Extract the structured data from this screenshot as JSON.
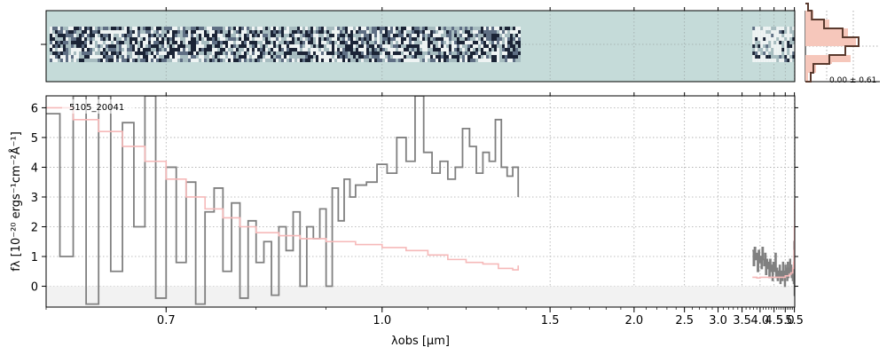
{
  "chart_data": [
    {
      "panel": "spectrum-2d",
      "type": "heatmap",
      "background_color": "#c5dbd9",
      "grid": true
    },
    {
      "panel": "histogram",
      "type": "bar",
      "stat_label": "0.00 ± 0.61",
      "fill_color": "#f6c7bb",
      "line_color": "#5a3a2e",
      "bins": [
        -1.0,
        -0.75,
        -0.5,
        -0.25,
        0.0,
        0.25,
        0.5,
        0.75,
        1.0
      ],
      "data_counts": [
        0.1,
        0.15,
        0.45,
        0.75,
        1.0,
        0.7,
        0.35,
        0.12,
        0.05
      ],
      "model_counts": [
        0.05,
        0.2,
        0.5,
        0.85,
        0.95,
        0.8,
        0.45,
        0.15,
        0.05
      ]
    },
    {
      "panel": "spectrum-1d",
      "type": "line",
      "object_label": "5105_20041",
      "xlabel": "λobs [μm]",
      "ylabel": "fλ [10⁻²⁰ ergs⁻¹cm⁻²Å⁻¹]",
      "xlim": [
        0.6,
        5.52
      ],
      "ylim": [
        -0.7,
        6.4
      ],
      "x_scale": "reciprocal",
      "x_ticks": [
        0.7,
        1.0,
        1.5,
        2.0,
        2.5,
        3.0,
        3.5,
        4.0,
        4.5,
        5.0,
        5.5
      ],
      "x_tick_labels": [
        "0.7",
        "1.0",
        "1.5",
        "2.0",
        "2.5",
        "3.0",
        "3.5",
        "4.0",
        "4.5",
        "5.0",
        "5.5"
      ],
      "y_ticks": [
        0,
        1,
        2,
        3,
        4,
        5,
        6
      ],
      "y_tick_labels": [
        "0",
        "1",
        "2",
        "3",
        "4",
        "5",
        "6"
      ],
      "grid": true,
      "series": [
        {
          "color": "#808080",
          "x": [
            0.6,
            0.61,
            0.62,
            0.63,
            0.64,
            0.65,
            0.66,
            0.67,
            0.68,
            0.69,
            0.7,
            0.71,
            0.72,
            0.73,
            0.74,
            0.75,
            0.76,
            0.77,
            0.78,
            0.79,
            0.8,
            0.81,
            0.82,
            0.83,
            0.84,
            0.85,
            0.86,
            0.87,
            0.88,
            0.89,
            0.9,
            0.91,
            0.92,
            0.93,
            0.94,
            0.95,
            0.97,
            0.99,
            1.01,
            1.03,
            1.05,
            1.07,
            1.09,
            1.11,
            1.13,
            1.15,
            1.17,
            1.19,
            1.21,
            1.23,
            1.25,
            1.27,
            1.29,
            1.31,
            1.33,
            1.35,
            1.37
          ],
          "y": [
            5.8,
            1.0,
            6.4,
            -0.6,
            6.4,
            0.5,
            5.5,
            2.0,
            6.4,
            -0.4,
            4.0,
            0.8,
            3.5,
            -0.6,
            2.5,
            3.3,
            0.5,
            2.8,
            -0.4,
            2.2,
            0.8,
            1.5,
            -0.3,
            2.0,
            1.2,
            2.5,
            0.0,
            2.0,
            1.6,
            2.6,
            0.0,
            3.3,
            2.2,
            3.6,
            3.0,
            3.4,
            3.5,
            4.1,
            3.8,
            5.0,
            4.2,
            6.4,
            4.5,
            3.8,
            4.2,
            3.6,
            4.0,
            5.3,
            4.7,
            3.8,
            4.5,
            4.2,
            5.6,
            4.0,
            3.7,
            4.0,
            3.0
          ]
        },
        {
          "color": "#f6b9b9",
          "x": [
            0.6,
            0.62,
            0.64,
            0.66,
            0.68,
            0.7,
            0.72,
            0.74,
            0.76,
            0.78,
            0.8,
            0.83,
            0.86,
            0.9,
            0.95,
            1.0,
            1.05,
            1.1,
            1.15,
            1.2,
            1.25,
            1.3,
            1.35,
            1.37
          ],
          "y": [
            6.0,
            5.6,
            5.2,
            4.7,
            4.2,
            3.6,
            3.0,
            2.6,
            2.3,
            2.0,
            1.8,
            1.7,
            1.6,
            1.5,
            1.4,
            1.3,
            1.2,
            1.05,
            0.9,
            0.8,
            0.75,
            0.6,
            0.55,
            0.7
          ]
        },
        {
          "color": "#808080",
          "x": [
            3.77,
            3.8,
            3.83,
            3.86,
            3.89,
            3.92,
            3.95,
            3.98,
            4.01,
            4.04,
            4.07,
            4.1,
            4.13,
            4.16,
            4.19,
            4.22,
            4.25,
            4.28,
            4.31,
            4.34,
            4.37,
            4.4,
            4.43,
            4.46,
            4.49,
            4.52,
            4.55,
            4.58,
            4.61,
            4.64,
            4.67,
            4.7,
            4.73,
            4.76,
            4.79,
            4.82,
            4.85,
            4.88,
            4.91,
            4.94,
            4.97,
            5.0,
            5.03,
            5.06,
            5.09,
            5.12,
            5.15,
            5.18,
            5.21,
            5.24,
            5.27,
            5.3,
            5.33,
            5.36,
            5.39,
            5.42,
            5.45,
            5.48,
            5.5,
            5.52
          ],
          "y": [
            1.2,
            0.7,
            1.3,
            0.9,
            1.1,
            0.5,
            1.2,
            0.8,
            1.0,
            0.6,
            1.3,
            0.9,
            0.7,
            1.1,
            0.4,
            0.9,
            0.6,
            0.8,
            0.3,
            0.9,
            0.5,
            0.7,
            0.2,
            0.8,
            0.5,
            0.6,
            1.1,
            0.3,
            0.6,
            0.2,
            0.5,
            0.3,
            0.7,
            0.1,
            0.5,
            0.4,
            0.2,
            0.8,
            0.3,
            0.5,
            0.0,
            0.7,
            0.4,
            0.6,
            0.2,
            0.8,
            0.3,
            0.6,
            0.5,
            0.9,
            0.4,
            0.7,
            0.3,
            0.6,
            0.2,
            0.5,
            0.1,
            1.5,
            -0.3,
            0.6
          ]
        },
        {
          "color": "#f6b9b9",
          "x": [
            3.77,
            3.9,
            4.0,
            4.2,
            4.4,
            4.6,
            4.8,
            5.0,
            5.2,
            5.3,
            5.4,
            5.45,
            5.48,
            5.5,
            5.52
          ],
          "y": [
            0.3,
            0.28,
            0.3,
            0.3,
            0.3,
            0.3,
            0.3,
            0.35,
            0.4,
            0.45,
            0.6,
            0.8,
            1.2,
            2.0,
            2.9
          ]
        }
      ]
    }
  ]
}
